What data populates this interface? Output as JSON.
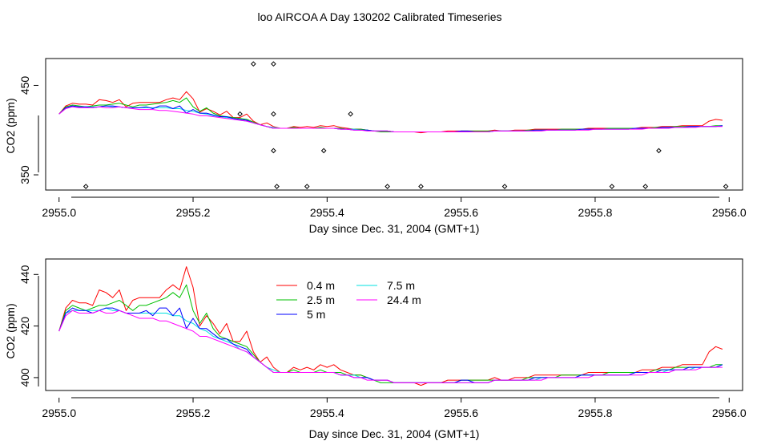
{
  "figure": {
    "title": "loo AIRCOA A  Day 130202  Calibrated Timeseries"
  },
  "colors": {
    "0.4 m": "#ff0000",
    "2.5 m": "#00c000",
    "5 m": "#0000ff",
    "7.5 m": "#00e0e0",
    "24.4 m": "#ff00ff",
    "points": "#000000"
  },
  "chart_data": [
    {
      "type": "line",
      "xlabel": "Day since Dec. 31, 2004 (GMT+1)",
      "ylabel": "CO2 (ppm)",
      "xlim": [
        2954.98,
        2956.02
      ],
      "ylim": [
        333,
        480
      ],
      "x_ticks": [
        2955.0,
        2955.2,
        2955.4,
        2955.6,
        2955.8,
        2956.0
      ],
      "x_tick_labels": [
        "2955.0",
        "2955.2",
        "2955.4",
        "2955.6",
        "2955.8",
        "2956.0"
      ],
      "y_ticks": [
        350,
        450
      ],
      "y_tick_labels": [
        "350",
        "450"
      ],
      "show_legend": false,
      "points": {
        "x": [
          2955.04,
          2955.27,
          2955.29,
          2955.32,
          2955.32,
          2955.32,
          2955.325,
          2955.37,
          2955.395,
          2955.435,
          2955.49,
          2955.54,
          2955.665,
          2955.825,
          2955.875,
          2955.895,
          2955.995
        ],
        "y": [
          337,
          418,
          474,
          474,
          418,
          377,
          337,
          337,
          377,
          418,
          337,
          337,
          337,
          337,
          337,
          377,
          337
        ]
      },
      "x": [
        2955.0,
        2955.01,
        2955.02,
        2955.03,
        2955.04,
        2955.05,
        2955.06,
        2955.07,
        2955.08,
        2955.09,
        2955.1,
        2955.11,
        2955.12,
        2955.13,
        2955.14,
        2955.15,
        2955.16,
        2955.17,
        2955.18,
        2955.19,
        2955.2,
        2955.21,
        2955.22,
        2955.23,
        2955.24,
        2955.25,
        2955.26,
        2955.27,
        2955.28,
        2955.29,
        2955.3,
        2955.31,
        2955.32,
        2955.33,
        2955.34,
        2955.35,
        2955.36,
        2955.37,
        2955.38,
        2955.39,
        2955.4,
        2955.41,
        2955.42,
        2955.43,
        2955.44,
        2955.45,
        2955.46,
        2955.47,
        2955.48,
        2955.49,
        2955.5,
        2955.51,
        2955.52,
        2955.53,
        2955.54,
        2955.55,
        2955.56,
        2955.57,
        2955.58,
        2955.59,
        2955.6,
        2955.61,
        2955.62,
        2955.63,
        2955.64,
        2955.65,
        2955.66,
        2955.67,
        2955.68,
        2955.69,
        2955.7,
        2955.71,
        2955.72,
        2955.73,
        2955.74,
        2955.75,
        2955.76,
        2955.77,
        2955.78,
        2955.79,
        2955.8,
        2955.81,
        2955.82,
        2955.83,
        2955.84,
        2955.85,
        2955.86,
        2955.87,
        2955.88,
        2955.89,
        2955.9,
        2955.91,
        2955.92,
        2955.93,
        2955.94,
        2955.95,
        2955.96,
        2955.97,
        2955.98,
        2955.99
      ],
      "series": [
        {
          "name": "0.4 m",
          "values": [
            418,
            427,
            430,
            429,
            429,
            428,
            434,
            433,
            431,
            434,
            426,
            430,
            431,
            431,
            431,
            431,
            434,
            436,
            434,
            443,
            435,
            420,
            424,
            421,
            417,
            421,
            414,
            414,
            418,
            410,
            406,
            408,
            404,
            402,
            402,
            404,
            403,
            404,
            403,
            405,
            404,
            405,
            403,
            402,
            401,
            401,
            400,
            399,
            399,
            399,
            398,
            398,
            398,
            398,
            397,
            398,
            398,
            398,
            399,
            399,
            399,
            399,
            399,
            399,
            399,
            400,
            399,
            399,
            400,
            400,
            400,
            401,
            401,
            401,
            401,
            401,
            401,
            401,
            401,
            402,
            402,
            402,
            402,
            402,
            402,
            402,
            402,
            403,
            403,
            403,
            404,
            404,
            404,
            405,
            405,
            405,
            405,
            410,
            412,
            411
          ]
        },
        {
          "name": "2.5 m",
          "values": [
            418,
            426,
            428,
            427,
            426,
            427,
            428,
            428,
            429,
            430,
            428,
            426,
            428,
            428,
            429,
            430,
            431,
            433,
            431,
            436,
            426,
            421,
            425,
            419,
            416,
            415,
            414,
            413,
            412,
            409,
            406,
            404,
            402,
            402,
            402,
            403,
            402,
            402,
            402,
            403,
            402,
            402,
            402,
            401,
            401,
            401,
            400,
            399,
            398,
            398,
            398,
            398,
            398,
            398,
            398,
            398,
            398,
            398,
            398,
            398,
            399,
            399,
            399,
            399,
            399,
            399,
            399,
            399,
            399,
            399,
            400,
            400,
            400,
            400,
            400,
            401,
            401,
            401,
            401,
            401,
            401,
            401,
            402,
            402,
            402,
            402,
            402,
            402,
            402,
            403,
            403,
            403,
            404,
            404,
            404,
            404,
            404,
            404,
            405,
            405
          ]
        },
        {
          "name": "5 m",
          "values": [
            418,
            425,
            427,
            426,
            426,
            425,
            426,
            427,
            427,
            426,
            425,
            425,
            425,
            426,
            424,
            427,
            427,
            424,
            427,
            419,
            423,
            419,
            419,
            417,
            415,
            415,
            413,
            412,
            411,
            408,
            406,
            404,
            402,
            402,
            402,
            402,
            402,
            402,
            402,
            402,
            402,
            402,
            401,
            401,
            400,
            400,
            400,
            399,
            399,
            399,
            398,
            398,
            398,
            398,
            398,
            398,
            398,
            398,
            398,
            398,
            399,
            399,
            398,
            398,
            398,
            399,
            399,
            399,
            399,
            399,
            399,
            400,
            400,
            400,
            400,
            400,
            400,
            400,
            401,
            401,
            401,
            401,
            401,
            401,
            401,
            401,
            402,
            402,
            402,
            402,
            403,
            403,
            403,
            403,
            404,
            404,
            404,
            404,
            404,
            405
          ]
        },
        {
          "name": "7.5 m",
          "values": [
            418,
            425,
            426,
            426,
            426,
            426,
            426,
            427,
            426,
            426,
            425,
            425,
            425,
            425,
            425,
            425,
            425,
            424,
            424,
            422,
            421,
            419,
            418,
            416,
            415,
            414,
            413,
            411,
            410,
            408,
            406,
            404,
            403,
            402,
            402,
            402,
            402,
            402,
            402,
            402,
            402,
            402,
            401,
            401,
            401,
            400,
            400,
            399,
            399,
            399,
            398,
            398,
            398,
            398,
            398,
            398,
            398,
            398,
            398,
            398,
            398,
            398,
            398,
            398,
            398,
            399,
            399,
            399,
            399,
            399,
            399,
            399,
            400,
            400,
            400,
            400,
            400,
            400,
            401,
            401,
            401,
            401,
            401,
            401,
            401,
            401,
            402,
            402,
            402,
            402,
            402,
            403,
            403,
            403,
            403,
            404,
            404,
            404,
            404,
            405
          ]
        },
        {
          "name": "24.4 m",
          "values": [
            418,
            424,
            426,
            425,
            425,
            425,
            426,
            425,
            425,
            426,
            425,
            424,
            423,
            423,
            423,
            422,
            422,
            421,
            420,
            419,
            418,
            416,
            416,
            415,
            414,
            413,
            412,
            411,
            410,
            408,
            406,
            404,
            402,
            402,
            402,
            402,
            402,
            402,
            402,
            402,
            402,
            402,
            401,
            401,
            400,
            400,
            399,
            399,
            399,
            399,
            398,
            398,
            398,
            398,
            398,
            398,
            398,
            398,
            398,
            398,
            398,
            398,
            398,
            398,
            398,
            399,
            399,
            399,
            399,
            399,
            399,
            399,
            399,
            400,
            400,
            400,
            400,
            400,
            400,
            400,
            401,
            401,
            401,
            401,
            401,
            401,
            401,
            401,
            402,
            402,
            402,
            402,
            403,
            403,
            403,
            403,
            404,
            404,
            404,
            404
          ]
        }
      ]
    },
    {
      "type": "line",
      "xlabel": "Day since Dec. 31, 2004 (GMT+1)",
      "ylabel": "CO2 (ppm)",
      "xlim": [
        2954.98,
        2956.02
      ],
      "ylim": [
        395,
        446
      ],
      "x_ticks": [
        2955.0,
        2955.2,
        2955.4,
        2955.6,
        2955.8,
        2956.0
      ],
      "x_tick_labels": [
        "2955.0",
        "2955.2",
        "2955.4",
        "2955.6",
        "2955.8",
        "2956.0"
      ],
      "y_ticks": [
        400,
        420,
        440
      ],
      "y_tick_labels": [
        "400",
        "420",
        "440"
      ],
      "show_legend": true,
      "legend_columns": [
        [
          "0.4 m",
          "2.5 m",
          "5 m"
        ],
        [
          "7.5 m",
          "24.4 m"
        ]
      ],
      "series_ref": "same as chart 1"
    }
  ]
}
